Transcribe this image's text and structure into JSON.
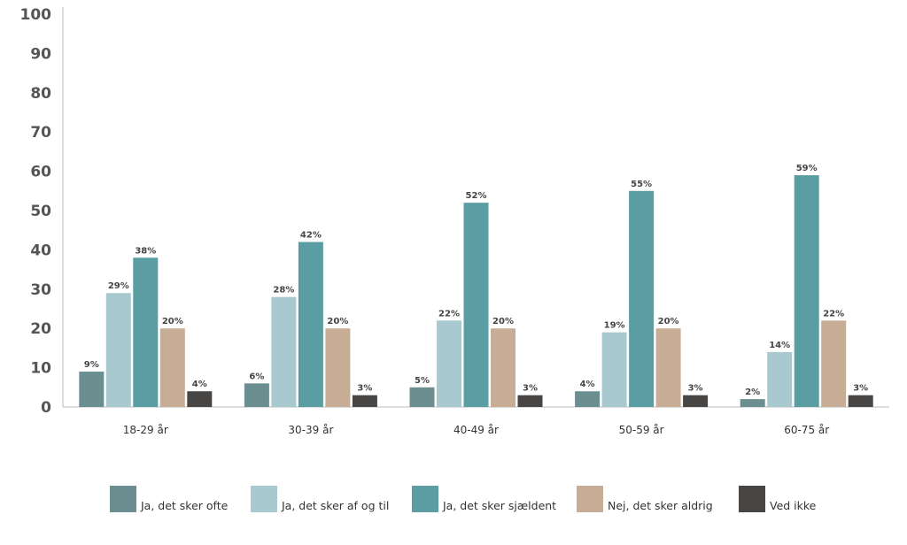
{
  "chart_data": {
    "type": "bar",
    "categories": [
      "18-29 år",
      "30-39 år",
      "40-49 år",
      "50-59 år",
      "60-75 år"
    ],
    "series": [
      {
        "name": "Ja, det sker ofte",
        "color": "#6b8e90",
        "values": [
          9,
          6,
          5,
          4,
          2
        ],
        "labels": [
          "9%",
          "6%",
          "5%",
          "4%",
          "2%"
        ]
      },
      {
        "name": "Ja, det sker af og til",
        "color": "#a7c9cf",
        "values": [
          29,
          28,
          22,
          19,
          14
        ],
        "labels": [
          "29%",
          "28%",
          "22%",
          "19%",
          "14%"
        ]
      },
      {
        "name": "Ja, det sker sjældent",
        "color": "#5a9ea4",
        "values": [
          38,
          42,
          52,
          55,
          59
        ],
        "labels": [
          "38%",
          "42%",
          "52%",
          "55%",
          "59%"
        ]
      },
      {
        "name": "Nej, det sker aldrig",
        "color": "#c7ad96",
        "values": [
          20,
          20,
          20,
          20,
          22
        ],
        "labels": [
          "20%",
          "20%",
          "20%",
          "20%",
          "22%"
        ]
      },
      {
        "name": "Ved ikke",
        "color": "#484644",
        "values": [
          4,
          3,
          3,
          3,
          3
        ],
        "labels": [
          "4%",
          "3%",
          "3%",
          "3%",
          "3%"
        ]
      }
    ],
    "yticks": [
      "0",
      "10",
      "20",
      "30",
      "40",
      "50",
      "60",
      "70",
      "80",
      "90",
      "100"
    ],
    "ylim": [
      0,
      100
    ],
    "grid": false,
    "legend": "bottom"
  }
}
